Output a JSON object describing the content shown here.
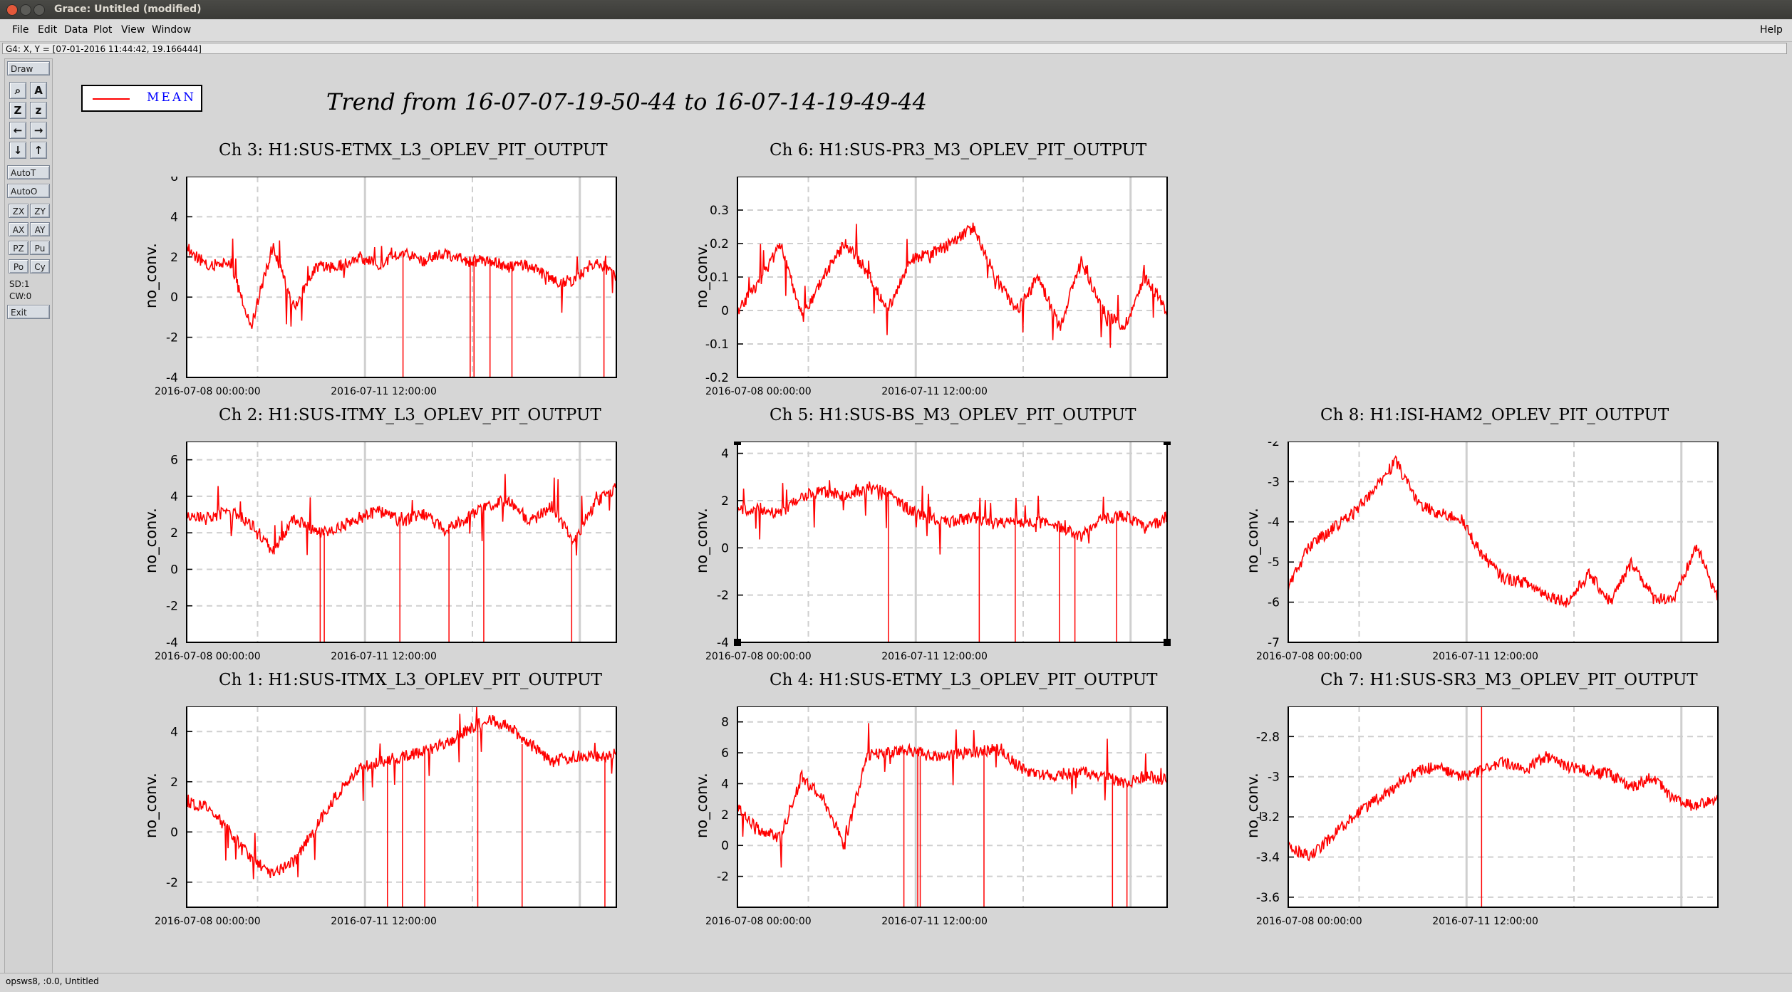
{
  "window": {
    "title": "Grace: Untitled (modified)"
  },
  "menu": [
    {
      "label": "File"
    },
    {
      "label": "Edit"
    },
    {
      "label": "Data"
    },
    {
      "label": "Plot"
    },
    {
      "label": "View"
    },
    {
      "label": "Window"
    },
    {
      "label": "Help"
    }
  ],
  "locator": "G4: X, Y = [07-01-2016 11:44:42, 19.166444]",
  "tools": {
    "draw": "Draw",
    "autot": "AutoT",
    "autoo": "AutoO",
    "zx": "ZX",
    "zy": "ZY",
    "ax": "AX",
    "ay": "AY",
    "pz": "PZ",
    "pu": "Pu",
    "po": "Po",
    "cy": "Cy",
    "sd": "SD:1",
    "cw": "CW:0",
    "exit": "Exit",
    "icons": [
      "zoom-icon",
      "autoscale-icon",
      "zoom-x-icon",
      "zoom-y-icon",
      "pan-left-icon",
      "pan-right-icon",
      "pan-down-icon",
      "pan-up-icon"
    ]
  },
  "status": "opsws8, :0.0, Untitled",
  "legend": {
    "label": "MEAN",
    "color": "#ff0000"
  },
  "main_title": "Trend from 16-07-07-19-50-44 to 16-07-14-19-49-44",
  "chart_data": [
    {
      "type": "line",
      "title": "Ch 3: H1:SUS-ETMX_L3_OPLEV_PIT_OUTPUT",
      "ylabel": "no_conv.",
      "ylim": [
        -4,
        6
      ],
      "yticks": [
        -4,
        -2,
        0,
        2,
        4,
        6
      ],
      "xticks": [
        "2016-07-08 00:00:00",
        "2016-07-11 12:00:00"
      ],
      "grid": true,
      "series": [
        {
          "name": "MEAN",
          "x": [
            0,
            0.05,
            0.1,
            0.15,
            0.2,
            0.25,
            0.3,
            0.35,
            0.4,
            0.45,
            0.5,
            0.55,
            0.6,
            0.65,
            0.7,
            0.75,
            0.8,
            0.85,
            0.9,
            0.95,
            1
          ],
          "values": [
            2.5,
            1.5,
            1.8,
            -1.5,
            2.5,
            -0.5,
            1.5,
            1.5,
            2.0,
            1.6,
            2.3,
            1.8,
            2.2,
            1.8,
            1.8,
            1.5,
            1.6,
            0.8,
            0.8,
            1.8,
            1.0
          ]
        }
      ]
    },
    {
      "type": "line",
      "title": "Ch 6: H1:SUS-PR3_M3_OPLEV_PIT_OUTPUT",
      "ylabel": "no_conv.",
      "ylim": [
        -0.2,
        0.4
      ],
      "yticks": [
        -0.2,
        -0.1,
        0,
        0.1,
        0.2,
        0.3
      ],
      "xticks": [
        "2016-07-08 00:00:00",
        "2016-07-11 12:00:00"
      ],
      "grid": true,
      "series": [
        {
          "name": "MEAN",
          "x": [
            0,
            0.05,
            0.1,
            0.15,
            0.2,
            0.25,
            0.3,
            0.35,
            0.4,
            0.45,
            0.5,
            0.55,
            0.6,
            0.65,
            0.7,
            0.75,
            0.8,
            0.85,
            0.9,
            0.95,
            1
          ],
          "values": [
            0.0,
            0.08,
            0.2,
            -0.02,
            0.1,
            0.2,
            0.12,
            0.0,
            0.15,
            0.17,
            0.2,
            0.25,
            0.1,
            0.0,
            0.1,
            -0.05,
            0.15,
            0.0,
            -0.05,
            0.1,
            0.0
          ]
        }
      ]
    },
    {
      "type": "line",
      "title": "Ch 2: H1:SUS-ITMY_L3_OPLEV_PIT_OUTPUT",
      "ylabel": "no_conv.",
      "ylim": [
        -4,
        7
      ],
      "yticks": [
        -4,
        -2,
        0,
        2,
        4,
        6
      ],
      "xticks": [
        "2016-07-08 00:00:00",
        "2016-07-11 12:00:00"
      ],
      "grid": true,
      "series": [
        {
          "name": "MEAN",
          "x": [
            0,
            0.05,
            0.1,
            0.15,
            0.2,
            0.25,
            0.3,
            0.35,
            0.4,
            0.45,
            0.5,
            0.55,
            0.6,
            0.65,
            0.7,
            0.75,
            0.8,
            0.85,
            0.9,
            0.95,
            1
          ],
          "values": [
            3.0,
            2.8,
            3.2,
            2.5,
            1.0,
            2.8,
            2.0,
            2.2,
            2.8,
            3.2,
            2.6,
            3.0,
            2.2,
            2.8,
            3.5,
            3.8,
            2.6,
            3.5,
            1.5,
            3.6,
            4.5
          ]
        }
      ]
    },
    {
      "type": "line",
      "title": "Ch 5: H1:SUS-BS_M3_OPLEV_PIT_OUTPUT",
      "ylabel": "no_conv.",
      "ylim": [
        -4,
        4.5
      ],
      "yticks": [
        -4,
        -2,
        0,
        2,
        4
      ],
      "xticks": [
        "2016-07-08 00:00:00",
        "2016-07-11 12:00:00"
      ],
      "grid": true,
      "series": [
        {
          "name": "MEAN",
          "x": [
            0,
            0.05,
            0.1,
            0.15,
            0.2,
            0.25,
            0.3,
            0.35,
            0.4,
            0.45,
            0.5,
            0.55,
            0.6,
            0.65,
            0.7,
            0.75,
            0.8,
            0.85,
            0.9,
            0.95,
            1
          ],
          "values": [
            1.6,
            1.7,
            1.4,
            2.2,
            2.4,
            2.2,
            2.5,
            2.4,
            1.6,
            1.2,
            1.1,
            1.3,
            1.0,
            1.2,
            1.1,
            0.9,
            0.5,
            1.2,
            1.4,
            0.8,
            1.3
          ]
        }
      ]
    },
    {
      "type": "line",
      "title": "Ch 8: H1:ISI-HAM2_OPLEV_PIT_OUTPUT",
      "ylabel": "no_conv.",
      "ylim": [
        -7,
        -2
      ],
      "yticks": [
        -7,
        -6,
        -5,
        -4,
        -3,
        -2
      ],
      "xticks": [
        "2016-07-08 00:00:00",
        "2016-07-11 12:00:00"
      ],
      "grid": true,
      "series": [
        {
          "name": "MEAN",
          "x": [
            0,
            0.05,
            0.1,
            0.15,
            0.2,
            0.25,
            0.3,
            0.35,
            0.4,
            0.45,
            0.5,
            0.55,
            0.6,
            0.65,
            0.7,
            0.75,
            0.8,
            0.85,
            0.9,
            0.95,
            1
          ],
          "values": [
            -5.6,
            -4.6,
            -4.2,
            -3.8,
            -3.2,
            -2.5,
            -3.5,
            -3.8,
            -3.9,
            -4.8,
            -5.4,
            -5.5,
            -5.8,
            -6.0,
            -5.3,
            -6.0,
            -5.0,
            -5.9,
            -5.9,
            -4.6,
            -5.9
          ]
        }
      ]
    },
    {
      "type": "line",
      "title": "Ch 1: H1:SUS-ITMX_L3_OPLEV_PIT_OUTPUT",
      "ylabel": "no_conv.",
      "ylim": [
        -3,
        5
      ],
      "yticks": [
        -2,
        0,
        2,
        4
      ],
      "xticks": [
        "2016-07-08 00:00:00",
        "2016-07-11 12:00:00"
      ],
      "grid": true,
      "series": [
        {
          "name": "MEAN",
          "x": [
            0,
            0.05,
            0.1,
            0.15,
            0.2,
            0.25,
            0.3,
            0.35,
            0.4,
            0.45,
            0.5,
            0.55,
            0.6,
            0.65,
            0.7,
            0.75,
            0.8,
            0.85,
            0.9,
            0.95,
            1
          ],
          "values": [
            1.2,
            1.0,
            0.0,
            -1.0,
            -1.7,
            -1.2,
            0.2,
            1.5,
            2.5,
            2.8,
            3.0,
            3.2,
            3.5,
            4.0,
            4.5,
            4.2,
            3.5,
            2.8,
            3.0,
            3.0,
            3.1
          ]
        }
      ]
    },
    {
      "type": "line",
      "title": "Ch 4: H1:SUS-ETMY_L3_OPLEV_PIT_OUTPUT",
      "ylabel": "no_conv.",
      "ylim": [
        -4,
        9
      ],
      "yticks": [
        -2,
        0,
        2,
        4,
        6,
        8
      ],
      "xticks": [
        "2016-07-08 00:00:00",
        "2016-07-11 12:00:00"
      ],
      "grid": true,
      "series": [
        {
          "name": "MEAN",
          "x": [
            0,
            0.05,
            0.1,
            0.15,
            0.2,
            0.25,
            0.3,
            0.35,
            0.4,
            0.45,
            0.5,
            0.55,
            0.6,
            0.65,
            0.7,
            0.75,
            0.8,
            0.85,
            0.9,
            0.95,
            1
          ],
          "values": [
            2.5,
            1.0,
            0.5,
            4.5,
            3.0,
            0.0,
            5.8,
            6.0,
            6.2,
            5.8,
            5.9,
            6.0,
            6.3,
            5.2,
            4.5,
            4.6,
            4.8,
            4.5,
            4.0,
            4.5,
            4.2
          ]
        }
      ]
    },
    {
      "type": "line",
      "title": "Ch 7: H1:SUS-SR3_M3_OPLEV_PIT_OUTPUT",
      "ylabel": "no_conv.",
      "ylim": [
        -3.65,
        -2.65
      ],
      "yticks": [
        -3.6,
        -3.4,
        -3.2,
        -3,
        -2.8
      ],
      "xticks": [
        "2016-07-08 00:00:00",
        "2016-07-11 12:00:00"
      ],
      "grid": true,
      "series": [
        {
          "name": "MEAN",
          "x": [
            0,
            0.05,
            0.1,
            0.15,
            0.2,
            0.25,
            0.3,
            0.35,
            0.4,
            0.45,
            0.5,
            0.55,
            0.6,
            0.65,
            0.7,
            0.75,
            0.8,
            0.85,
            0.9,
            0.95,
            1
          ],
          "values": [
            -3.35,
            -3.4,
            -3.3,
            -3.2,
            -3.12,
            -3.05,
            -2.97,
            -2.95,
            -3.0,
            -2.97,
            -2.93,
            -2.97,
            -2.9,
            -2.95,
            -2.97,
            -2.99,
            -3.05,
            -3.0,
            -3.12,
            -3.15,
            -3.1
          ]
        }
      ]
    }
  ]
}
